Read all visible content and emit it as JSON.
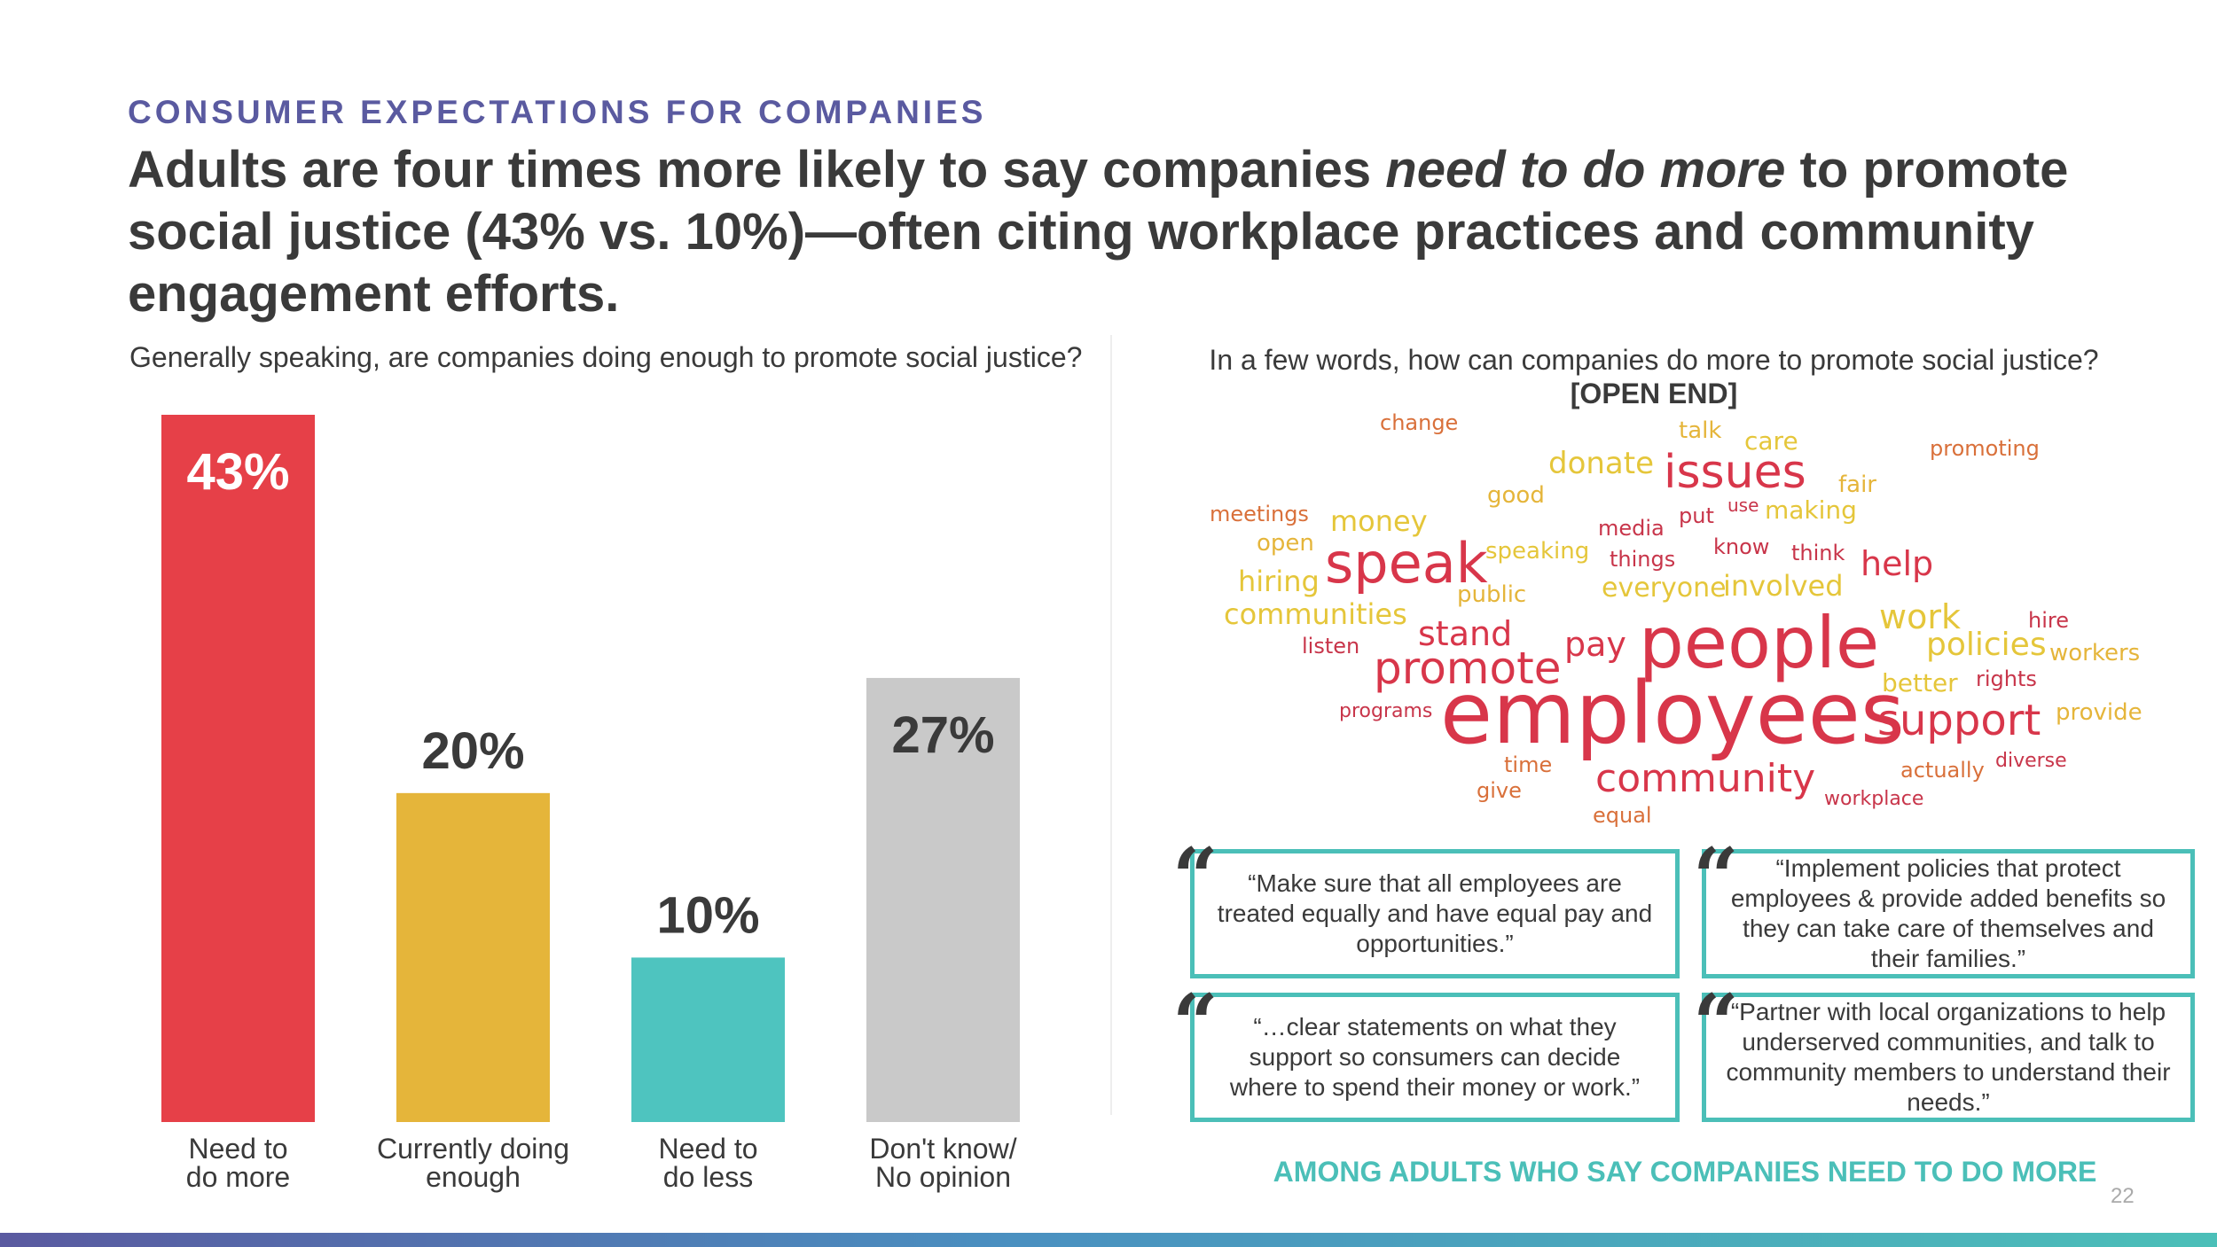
{
  "eyebrow": "CONSUMER EXPECTATIONS FOR COMPANIES",
  "headline": {
    "part1": "Adults are four times more likely to say companies ",
    "emphasis": "need to do more",
    "part2": " to promote social justice (43% vs. 10%)—often citing workplace practices and community engagement efforts."
  },
  "left_question": "Generally speaking, are companies doing enough to promote social justice?",
  "right_question": "In a few words, how can companies do more to promote social justice?",
  "right_question_tag": "[OPEN END]",
  "chart_data": {
    "type": "bar",
    "title": "",
    "xlabel": "",
    "ylabel": "",
    "ylim": [
      0,
      43
    ],
    "categories": [
      "Need to\ndo more",
      "Currently doing\nenough",
      "Need to\ndo less",
      "Don't know/\nNo opinion"
    ],
    "values": [
      43,
      20,
      10,
      27
    ],
    "data_labels": [
      "43%",
      "20%",
      "10%",
      "27%"
    ],
    "colors": [
      "#e64048",
      "#e5b53a",
      "#4ec4bf",
      "#c9c9c9"
    ],
    "label_colors": [
      "#ffffff",
      "#3a3a3a",
      "#3a3a3a",
      "#3a3a3a"
    ],
    "grid": false,
    "legend": "none"
  },
  "word_cloud": [
    {
      "text": "employees",
      "color": "#d8364a"
    },
    {
      "text": "people",
      "color": "#d8364a"
    },
    {
      "text": "speak",
      "color": "#d8364a"
    },
    {
      "text": "issues",
      "color": "#d8364a"
    },
    {
      "text": "promote",
      "color": "#d8364a"
    },
    {
      "text": "support",
      "color": "#d8364a"
    },
    {
      "text": "community",
      "color": "#d8364a"
    },
    {
      "text": "stand",
      "color": "#d8364a"
    },
    {
      "text": "pay",
      "color": "#d8364a"
    },
    {
      "text": "help",
      "color": "#d8364a"
    },
    {
      "text": "work",
      "color": "#e5c63a"
    },
    {
      "text": "policies",
      "color": "#e5c63a"
    },
    {
      "text": "donate",
      "color": "#e5c63a"
    },
    {
      "text": "money",
      "color": "#e5c63a"
    },
    {
      "text": "hiring",
      "color": "#e5c63a"
    },
    {
      "text": "communities",
      "color": "#e5c63a"
    },
    {
      "text": "involved",
      "color": "#e5c63a"
    },
    {
      "text": "everyone",
      "color": "#e5c63a"
    },
    {
      "text": "making",
      "color": "#e5c63a"
    },
    {
      "text": "care",
      "color": "#e5c63a"
    },
    {
      "text": "better",
      "color": "#e5c63a"
    },
    {
      "text": "workers",
      "color": "#e5b53a"
    },
    {
      "text": "provide",
      "color": "#e5b53a"
    },
    {
      "text": "speaking",
      "color": "#e5c63a"
    },
    {
      "text": "public",
      "color": "#e5b53a"
    },
    {
      "text": "good",
      "color": "#e5b53a"
    },
    {
      "text": "talk",
      "color": "#e5b53a"
    },
    {
      "text": "fair",
      "color": "#e5b53a"
    },
    {
      "text": "open",
      "color": "#e5b53a"
    },
    {
      "text": "change",
      "color": "#d9703a"
    },
    {
      "text": "promoting",
      "color": "#d9703a"
    },
    {
      "text": "meetings",
      "color": "#d9703a"
    },
    {
      "text": "media",
      "color": "#c8354a"
    },
    {
      "text": "put",
      "color": "#c8354a"
    },
    {
      "text": "use",
      "color": "#c8354a"
    },
    {
      "text": "things",
      "color": "#c8354a"
    },
    {
      "text": "know",
      "color": "#c8354a"
    },
    {
      "text": "think",
      "color": "#c8354a"
    },
    {
      "text": "hire",
      "color": "#c8354a"
    },
    {
      "text": "rights",
      "color": "#c8354a"
    },
    {
      "text": "listen",
      "color": "#c8354a"
    },
    {
      "text": "programs",
      "color": "#c8354a"
    },
    {
      "text": "time",
      "color": "#d9703a"
    },
    {
      "text": "give",
      "color": "#d9703a"
    },
    {
      "text": "equal",
      "color": "#d9703a"
    },
    {
      "text": "actually",
      "color": "#d9703a"
    },
    {
      "text": "diverse",
      "color": "#c8354a"
    },
    {
      "text": "workplace",
      "color": "#c8354a"
    }
  ],
  "quotes": [
    {
      "text": "“Make sure that all employees are treated equally and have equal pay and opportunities.”"
    },
    {
      "text": "“Implement policies that protect employees & provide added benefits so they can take care of themselves and their families.”"
    },
    {
      "text": "“…clear statements on what they support so consumers can decide where to spend their money or work.”"
    },
    {
      "text": "“Partner with local organizations to help underserved communities, and talk to community members to understand their needs.”"
    }
  ],
  "quote_mark": "“",
  "among_label": "AMONG ADULTS WHO SAY COMPANIES NEED TO DO MORE",
  "page_number": "22"
}
